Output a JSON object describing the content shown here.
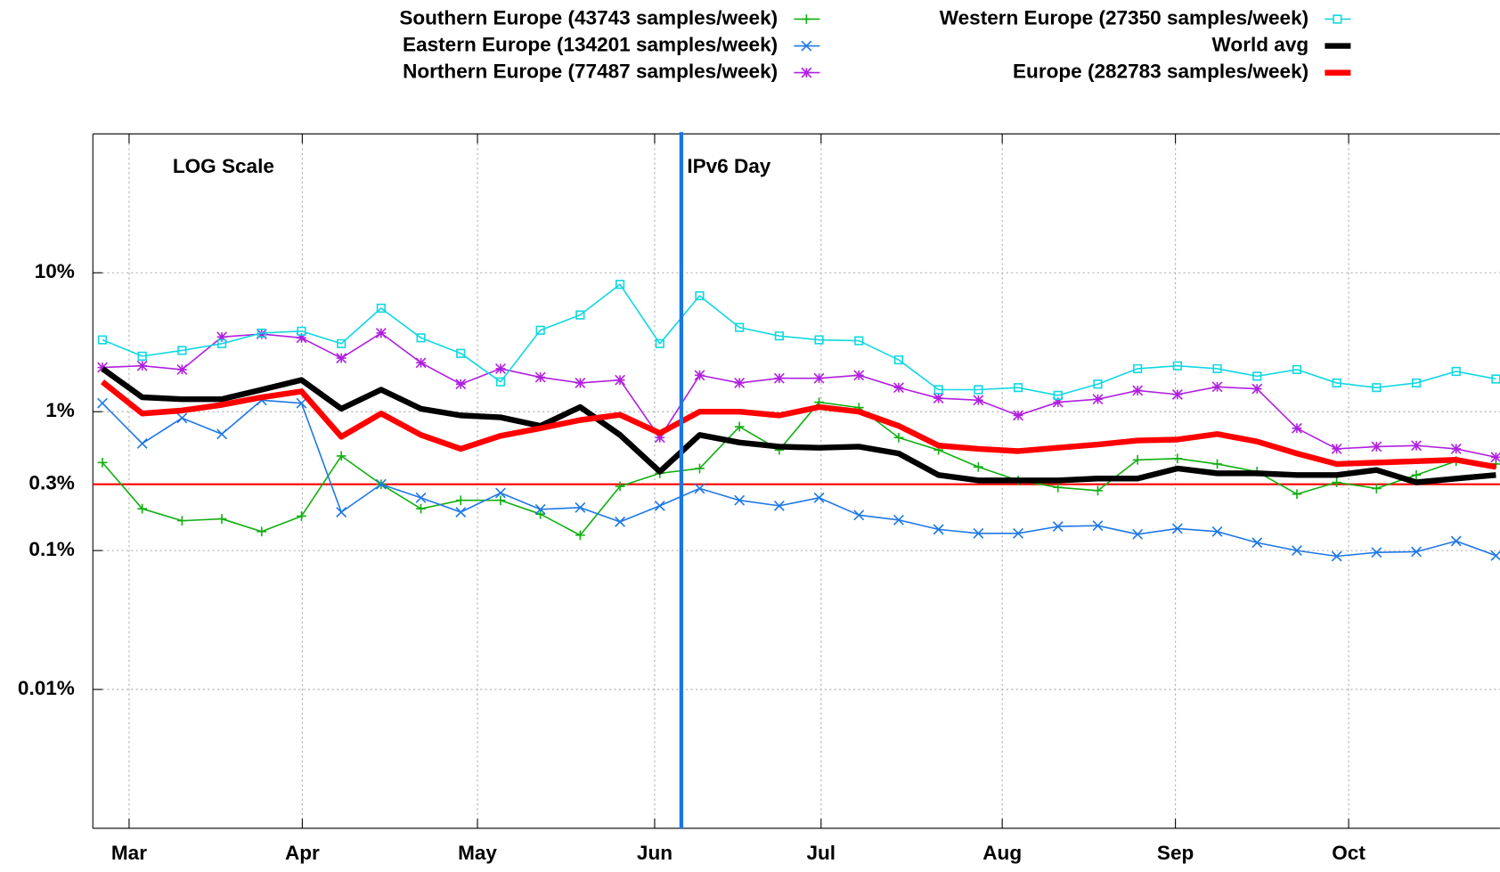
{
  "chart_data": {
    "type": "line",
    "log_y": true,
    "grid": true,
    "legend_position": "top",
    "annotations": [
      {
        "text": "LOG Scale",
        "x": 1.5
      },
      {
        "text": "IPv6 Day",
        "x": 14.54,
        "color": "#1976e6"
      }
    ],
    "reference_line": {
      "value": 0.3,
      "color": "#ff0000"
    },
    "x": [
      0,
      1,
      2,
      3,
      4,
      5,
      6,
      7,
      8,
      9,
      10,
      11,
      12,
      13,
      14,
      15,
      16,
      17,
      18,
      19,
      20,
      21,
      22,
      23,
      24,
      25,
      26,
      27,
      28,
      29,
      30,
      31,
      32,
      33,
      34,
      35
    ],
    "xlim": [
      -0.24,
      35.1
    ],
    "xticks": [
      {
        "value": 0.67,
        "label": "Mar"
      },
      {
        "value": 5.02,
        "label": "Apr"
      },
      {
        "value": 9.42,
        "label": "May"
      },
      {
        "value": 13.87,
        "label": "Jun"
      },
      {
        "value": 18.05,
        "label": "Jul"
      },
      {
        "value": 22.6,
        "label": "Aug"
      },
      {
        "value": 26.95,
        "label": "Sep"
      },
      {
        "value": 31.3,
        "label": "Oct"
      }
    ],
    "ylim": [
      0.001,
      100
    ],
    "yticks": [
      {
        "value": 0.01,
        "label": "0.01%"
      },
      {
        "value": 0.1,
        "label": "0.1%"
      },
      {
        "value": 0.3,
        "label": "0.3%"
      },
      {
        "value": 1,
        "label": "1%"
      },
      {
        "value": 10,
        "label": "10%"
      }
    ],
    "series": [
      {
        "name": "Southern Europe (43743 samples/week)",
        "color": "#10b010",
        "marker": "plus",
        "line_width": 1.5,
        "values": [
          0.43,
          0.2,
          0.164,
          0.169,
          0.137,
          0.177,
          0.48,
          0.3,
          0.2,
          0.23,
          0.23,
          0.183,
          0.129,
          0.29,
          0.36,
          0.39,
          0.78,
          0.53,
          1.17,
          1.07,
          0.65,
          0.53,
          0.4,
          0.32,
          0.285,
          0.27,
          0.45,
          0.46,
          0.42,
          0.37,
          0.255,
          0.31,
          0.28,
          0.35,
          0.44,
          0.42
        ]
      },
      {
        "name": "Eastern Europe (134201 samples/week)",
        "color": "#1e78e6",
        "marker": "cross",
        "line_width": 1.5,
        "values": [
          1.15,
          0.59,
          0.9,
          0.69,
          1.21,
          1.15,
          0.189,
          0.3,
          0.24,
          0.189,
          0.26,
          0.198,
          0.204,
          0.161,
          0.21,
          0.28,
          0.23,
          0.21,
          0.24,
          0.18,
          0.166,
          0.142,
          0.133,
          0.133,
          0.149,
          0.151,
          0.131,
          0.144,
          0.137,
          0.114,
          0.1,
          0.091,
          0.097,
          0.098,
          0.117,
          0.092
        ]
      },
      {
        "name": "Northern Europe (77487 samples/week)",
        "color": "#b020e0",
        "marker": "star",
        "line_width": 1.5,
        "values": [
          2.08,
          2.14,
          2.01,
          3.45,
          3.62,
          3.4,
          2.43,
          3.68,
          2.25,
          1.58,
          2.04,
          1.77,
          1.61,
          1.69,
          0.65,
          1.83,
          1.61,
          1.74,
          1.74,
          1.83,
          1.49,
          1.25,
          1.21,
          0.94,
          1.17,
          1.23,
          1.42,
          1.33,
          1.51,
          1.46,
          0.76,
          0.54,
          0.56,
          0.57,
          0.54,
          0.47
        ]
      },
      {
        "name": "Western Europe (27350 samples/week)",
        "color": "#10d8e0",
        "marker": "square",
        "line_width": 1.5,
        "values": [
          3.29,
          2.51,
          2.76,
          3.09,
          3.68,
          3.8,
          3.09,
          5.56,
          3.4,
          2.63,
          1.64,
          3.86,
          4.97,
          8.26,
          3.09,
          6.83,
          4.04,
          3.51,
          3.29,
          3.24,
          2.36,
          1.44,
          1.44,
          1.49,
          1.31,
          1.58,
          2.04,
          2.14,
          2.04,
          1.8,
          2.01,
          1.61,
          1.49,
          1.61,
          1.95,
          1.72
        ]
      },
      {
        "name": "World avg",
        "color": "#000000",
        "marker": null,
        "line_width": 6,
        "values": [
          2.04,
          1.27,
          1.23,
          1.23,
          1.44,
          1.69,
          1.05,
          1.44,
          1.05,
          0.94,
          0.91,
          0.79,
          1.08,
          0.68,
          0.37,
          0.68,
          0.6,
          0.56,
          0.55,
          0.56,
          0.5,
          0.35,
          0.32,
          0.32,
          0.32,
          0.33,
          0.33,
          0.39,
          0.36,
          0.36,
          0.35,
          0.35,
          0.38,
          0.31,
          0.33,
          0.35
        ]
      },
      {
        "name": "Europe (282783 samples/week)",
        "color": "#ff0000",
        "marker": null,
        "line_width": 6,
        "values": [
          1.64,
          0.97,
          1.02,
          1.12,
          1.27,
          1.4,
          0.66,
          0.97,
          0.68,
          0.54,
          0.67,
          0.76,
          0.87,
          0.95,
          0.7,
          1.0,
          1.0,
          0.94,
          1.08,
          1.0,
          0.79,
          0.57,
          0.54,
          0.52,
          0.55,
          0.58,
          0.62,
          0.63,
          0.69,
          0.61,
          0.5,
          0.42,
          0.43,
          0.44,
          0.45,
          0.4
        ]
      }
    ]
  }
}
